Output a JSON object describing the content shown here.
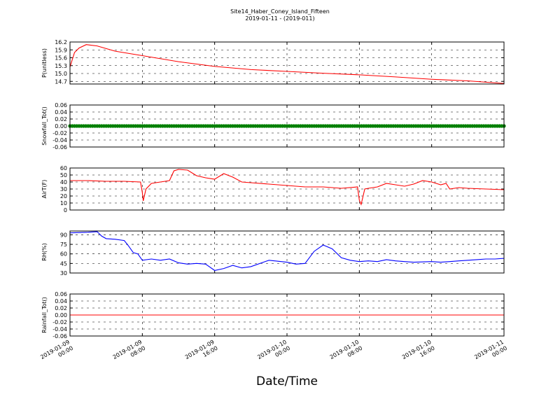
{
  "title_line1": "Site14_Haber_Coney_Island_Fifteen",
  "title_line2": "2019-01-11 - (2019-011)",
  "xlabel": "Date/Time",
  "x_ticks": [
    {
      "pos": 0,
      "line1": "2019-01-09",
      "line2": "00:00"
    },
    {
      "pos": 8,
      "line1": "2019-01-09",
      "line2": "08:00"
    },
    {
      "pos": 16,
      "line1": "2019-01-09",
      "line2": "16:00"
    },
    {
      "pos": 24,
      "line1": "2019-01-10",
      "line2": "00:00"
    },
    {
      "pos": 32,
      "line1": "2019-01-10",
      "line2": "08:00"
    },
    {
      "pos": 40,
      "line1": "2019-01-10",
      "line2": "16:00"
    },
    {
      "pos": 48,
      "line1": "2019-01-11",
      "line2": "00:00"
    }
  ],
  "chart_data": [
    {
      "type": "line",
      "ylabel": "P(unitless)",
      "ylim": [
        14.6,
        16.2
      ],
      "yticks": [
        "14.7",
        "15.0",
        "15.3",
        "15.6",
        "15.9",
        "16.2"
      ],
      "yticks_values": [
        14.7,
        15.0,
        15.3,
        15.6,
        15.9,
        16.2
      ],
      "grid": true,
      "color": "#ff0000",
      "x": [
        0,
        0.5,
        1,
        1.8,
        3,
        5,
        8,
        12,
        16,
        20,
        24,
        28,
        32,
        36,
        40,
        44,
        48
      ],
      "values": [
        15.25,
        15.8,
        15.97,
        16.1,
        16.05,
        15.85,
        15.68,
        15.45,
        15.27,
        15.15,
        15.08,
        15.01,
        14.95,
        14.87,
        14.78,
        14.72,
        14.62
      ]
    },
    {
      "type": "scatter",
      "ylabel": "Snowfall_Tot()",
      "ylim": [
        -0.06,
        0.06
      ],
      "yticks": [
        "-0.06",
        "-0.04",
        "-0.02",
        "0.00",
        "0.02",
        "0.04",
        "0.06"
      ],
      "yticks_values": [
        -0.06,
        -0.04,
        -0.02,
        0.0,
        0.02,
        0.04,
        0.06
      ],
      "grid": true,
      "color": "#008000",
      "x_start": 0,
      "x_end": 48,
      "x_step": 0.25,
      "constant_value": 0.0
    },
    {
      "type": "line",
      "ylabel": "AirT(F)",
      "ylim": [
        0,
        60
      ],
      "yticks": [
        "0",
        "10",
        "20",
        "30",
        "40",
        "50",
        "60"
      ],
      "yticks_values": [
        0,
        10,
        20,
        30,
        40,
        50,
        60
      ],
      "grid": true,
      "color": "#ff0000",
      "x": [
        0,
        2,
        4,
        6,
        7.8,
        8.0,
        8.1,
        8.4,
        9,
        10,
        11,
        11.5,
        12,
        13,
        14,
        15,
        16,
        17,
        18,
        19,
        20,
        22,
        24,
        26,
        28,
        30,
        31.8,
        32.0,
        32.2,
        32.6,
        33,
        34,
        35,
        36,
        37,
        38,
        39,
        40,
        40.5,
        41,
        41.6,
        42,
        43,
        44,
        46,
        48
      ],
      "values": [
        42,
        42,
        41,
        41,
        40,
        25,
        13,
        30,
        38,
        40,
        42,
        56,
        58,
        57,
        49,
        46,
        44,
        52,
        47,
        40,
        39,
        37,
        35,
        33,
        33,
        31,
        33,
        14,
        8,
        30,
        31,
        33,
        38,
        36,
        34,
        37,
        42,
        40,
        38,
        36,
        38,
        30,
        32,
        31,
        30,
        29
      ]
    },
    {
      "type": "line",
      "ylabel": "RH(%)",
      "ylim": [
        30,
        96
      ],
      "yticks": [
        "30",
        "45",
        "60",
        "75",
        "90"
      ],
      "yticks_values": [
        30,
        45,
        60,
        75,
        90
      ],
      "grid": true,
      "color": "#0000ff",
      "x": [
        0,
        2,
        3,
        3.5,
        4,
        5,
        6,
        6.5,
        7,
        7.5,
        8,
        9,
        10,
        11,
        12,
        13,
        14,
        15,
        16,
        17,
        18,
        19,
        20,
        22,
        24,
        25,
        26,
        27,
        28,
        29,
        30,
        31,
        32,
        33,
        34,
        35,
        36,
        37,
        38,
        40,
        41,
        42,
        43,
        44,
        45,
        46,
        47,
        48
      ],
      "values": [
        93,
        94,
        95,
        88,
        84,
        83,
        81,
        72,
        62,
        60,
        50,
        52,
        50,
        52,
        46,
        44,
        45,
        44,
        34,
        37,
        42,
        38,
        40,
        50,
        47,
        44,
        45,
        64,
        74,
        68,
        54,
        50,
        48,
        49,
        48,
        51,
        49,
        48,
        47,
        48,
        47,
        48,
        49,
        50,
        51,
        52,
        52,
        53
      ]
    },
    {
      "type": "line",
      "ylabel": "Rainfall_Tot()",
      "ylim": [
        -0.06,
        0.06
      ],
      "yticks": [
        "-0.06",
        "-0.04",
        "-0.02",
        "0.00",
        "0.02",
        "0.04",
        "0.06"
      ],
      "yticks_values": [
        -0.06,
        -0.04,
        -0.02,
        0.0,
        0.02,
        0.04,
        0.06
      ],
      "grid": true,
      "color": "#ff0000",
      "x": [
        0,
        48
      ],
      "values": [
        0.0,
        0.0
      ]
    }
  ]
}
